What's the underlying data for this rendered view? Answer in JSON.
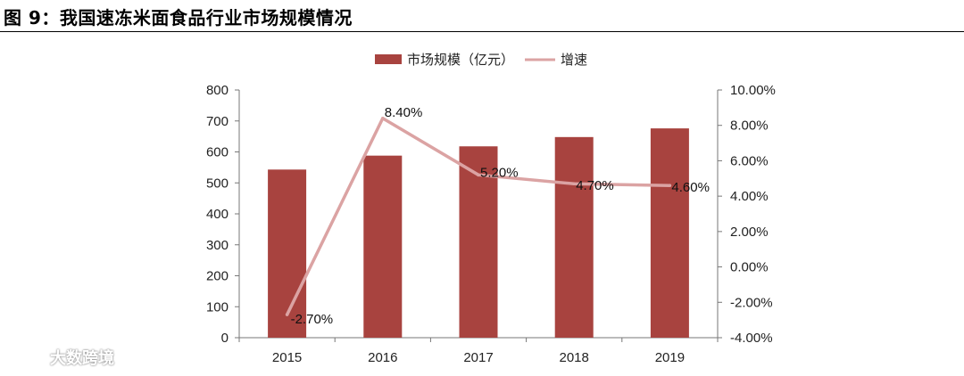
{
  "figure": {
    "title": "图 9：我国速冻米面食品行业市场规模情况"
  },
  "watermark": {
    "text": "大数跨境",
    "icon": "logo-icon"
  },
  "chart_data": {
    "type": "bar+line",
    "categories": [
      "2015",
      "2016",
      "2017",
      "2018",
      "2019"
    ],
    "series": [
      {
        "name": "市场规模（亿元）",
        "type": "bar",
        "axis": "left",
        "values": [
          543,
          588,
          618,
          648,
          676
        ],
        "color": "#a8433f"
      },
      {
        "name": "增速",
        "type": "line",
        "axis": "right",
        "values": [
          -2.7,
          8.4,
          5.2,
          4.7,
          4.6
        ],
        "labels": [
          "-2.70%",
          "8.40%",
          "5.20%",
          "4.70%",
          "4.60%"
        ],
        "color": "#dba3a3"
      }
    ],
    "y_left": {
      "min": 0,
      "max": 800,
      "step": 100,
      "ticks": [
        "0",
        "100",
        "200",
        "300",
        "400",
        "500",
        "600",
        "700",
        "800"
      ]
    },
    "y_right": {
      "min": -4,
      "max": 10,
      "step": 2,
      "ticks": [
        "-4.00%",
        "-2.00%",
        "0.00%",
        "2.00%",
        "4.00%",
        "6.00%",
        "8.00%",
        "10.00%"
      ]
    },
    "legend": "top-center",
    "grid": false
  }
}
